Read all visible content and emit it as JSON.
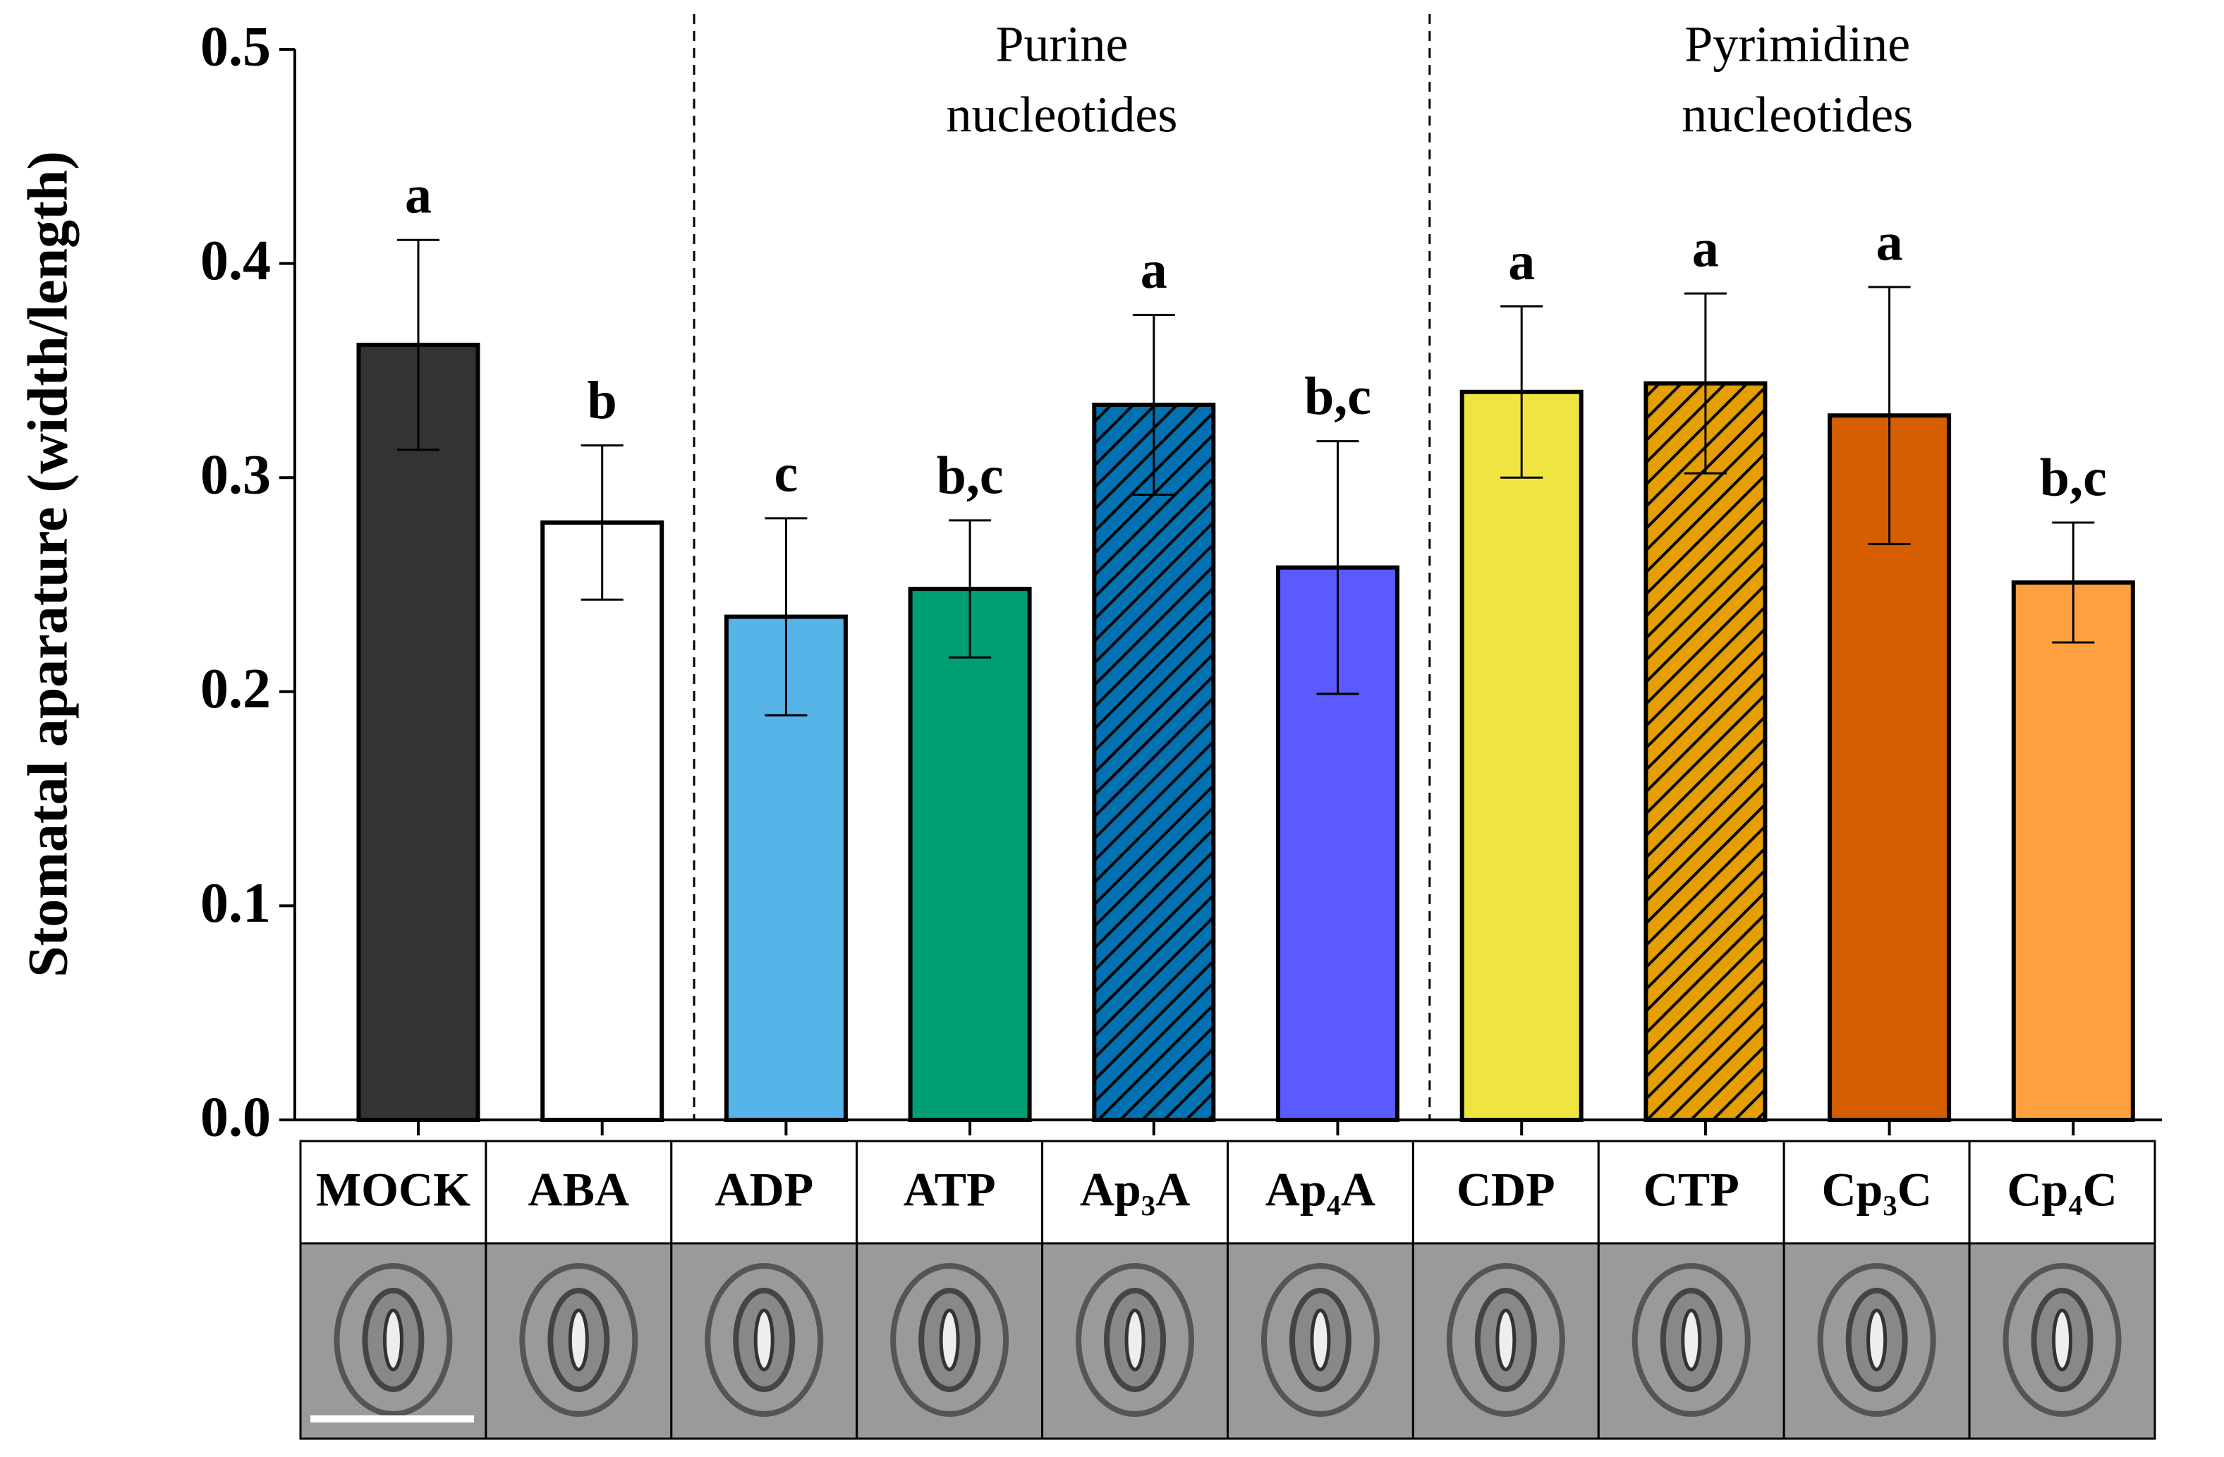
{
  "chart_data": {
    "type": "bar",
    "y_label": "Stomatal aparature (width/length)",
    "categories": [
      "MOCK",
      "ABA",
      "ADP",
      "ATP",
      "Ap₃A",
      "Ap₄A",
      "CDP",
      "CTP",
      "Cp₃C",
      "Cp₄C"
    ],
    "values": [
      0.362,
      0.279,
      0.235,
      0.248,
      0.334,
      0.258,
      0.34,
      0.344,
      0.329,
      0.251
    ],
    "errors": [
      0.049,
      0.036,
      0.046,
      0.032,
      0.042,
      0.059,
      0.04,
      0.042,
      0.06,
      0.028
    ],
    "value_labels": [
      "a",
      "b",
      "c",
      "b,c",
      "a",
      "b,c",
      "a",
      "a",
      "a",
      "b,c"
    ],
    "colors": [
      "#333333",
      "#ffffff",
      "#56b4e9",
      "#009e73",
      "#0072b2",
      "#5a5aff",
      "#f0e442",
      "#e69f00",
      "#d55e00",
      "#ffa040"
    ],
    "hatch": [
      false,
      false,
      false,
      false,
      true,
      false,
      false,
      true,
      false,
      false
    ],
    "groups": [
      {
        "label": [
          "Purine",
          "nucleotides"
        ]
      },
      {
        "label": [
          "Pyrimidine",
          "nucleotides"
        ]
      }
    ],
    "ylim": [
      0,
      0.5
    ],
    "yticks": [
      {
        "value": 0,
        "label": "0.0"
      },
      0.1,
      0.2,
      0.3,
      0.4,
      0.5
    ]
  }
}
